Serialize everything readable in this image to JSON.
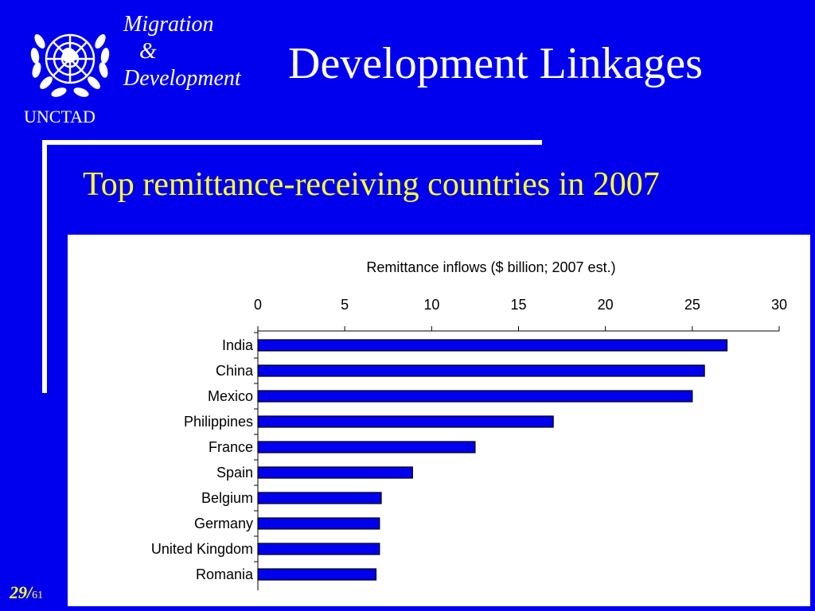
{
  "header": {
    "logo_icon": "un-emblem-icon",
    "org": "UNCTAD",
    "brand_line1": "Migration",
    "brand_line2": "&",
    "brand_line3": "Development",
    "title": "Development Linkages"
  },
  "subtitle": "Top remittance-receiving countries in 2007",
  "colors": {
    "background": "#0000ee",
    "accent": "#ffff33",
    "bar": "#0000ee"
  },
  "chart_data": {
    "type": "bar",
    "orientation": "horizontal",
    "title": "Remittance inflows ($ billion; 2007 est.)",
    "categories": [
      "India",
      "China",
      "Mexico",
      "Philippines",
      "France",
      "Spain",
      "Belgium",
      "Germany",
      "United Kingdom",
      "Romania"
    ],
    "values": [
      27.0,
      25.7,
      25.0,
      17.0,
      12.5,
      8.9,
      7.1,
      7.0,
      7.0,
      6.8
    ],
    "xlim": [
      0,
      30
    ],
    "xticks": [
      0,
      5,
      10,
      15,
      20,
      25,
      30
    ],
    "xaxis_position": "top",
    "grid": false
  },
  "footer": {
    "page_current": "29/",
    "page_total": "61"
  }
}
